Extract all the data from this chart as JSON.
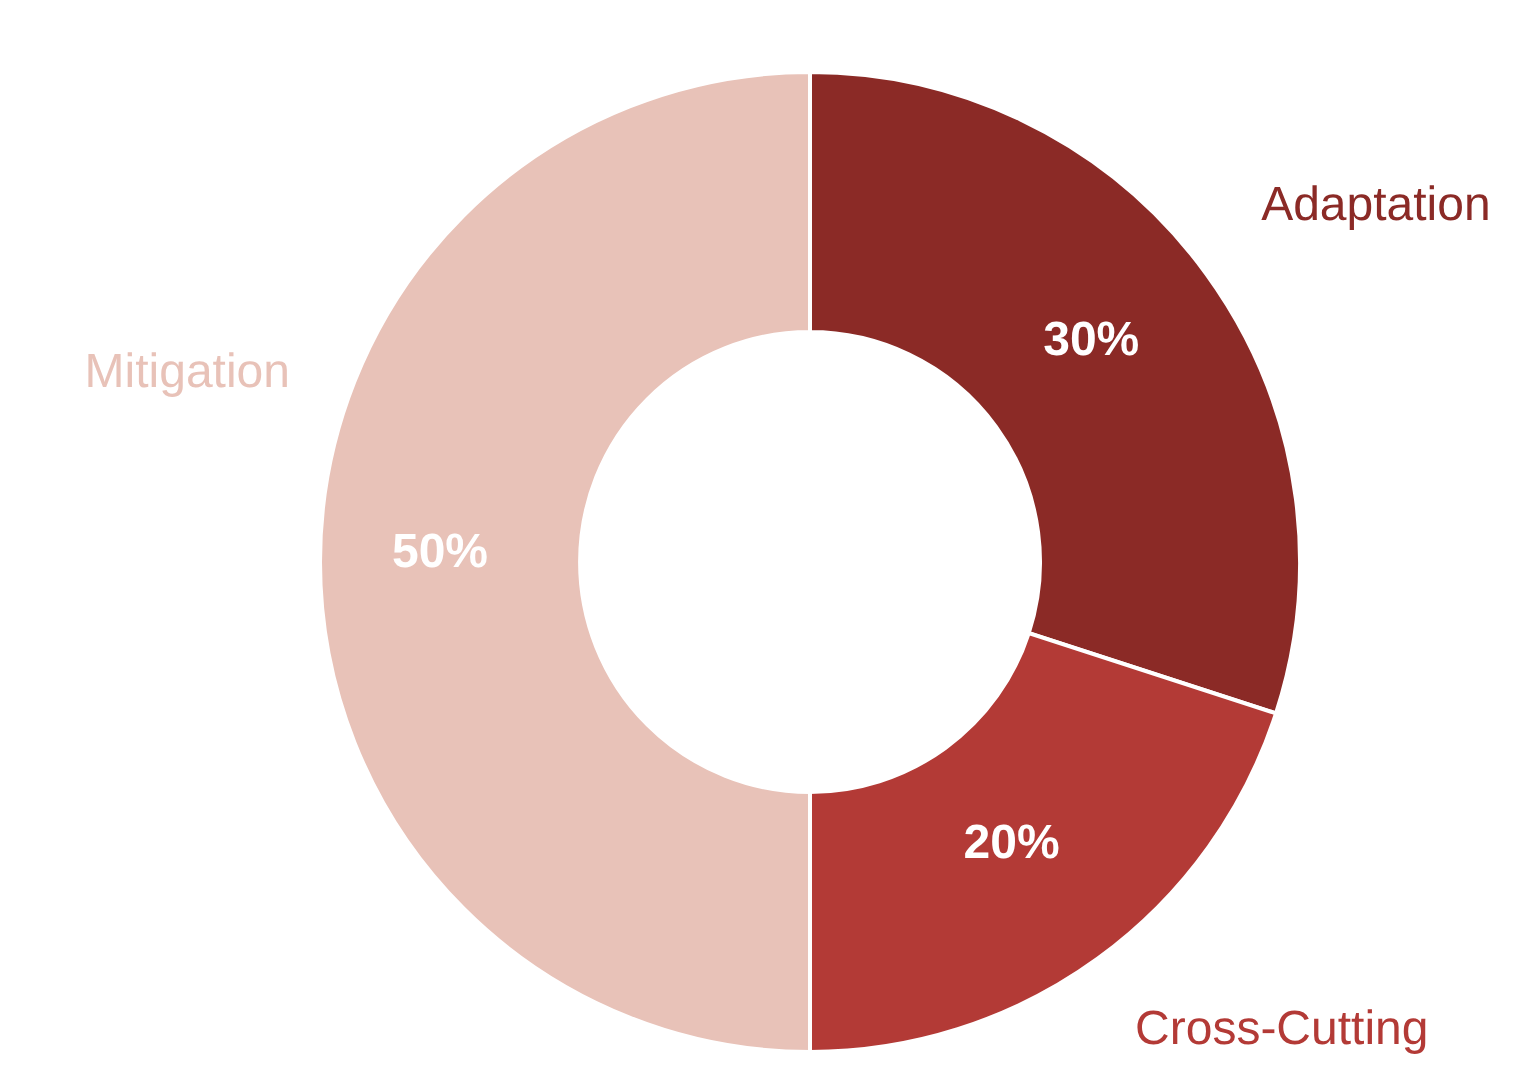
{
  "chart_data": {
    "type": "donut",
    "categories": [
      "Adaptation",
      "Cross-Cutting",
      "Mitigation"
    ],
    "values": [
      30,
      20,
      50
    ],
    "value_labels": [
      "30%",
      "20%",
      "50%"
    ],
    "colors": [
      "#8b2a26",
      "#b33a36",
      "#e8c2b8"
    ]
  }
}
